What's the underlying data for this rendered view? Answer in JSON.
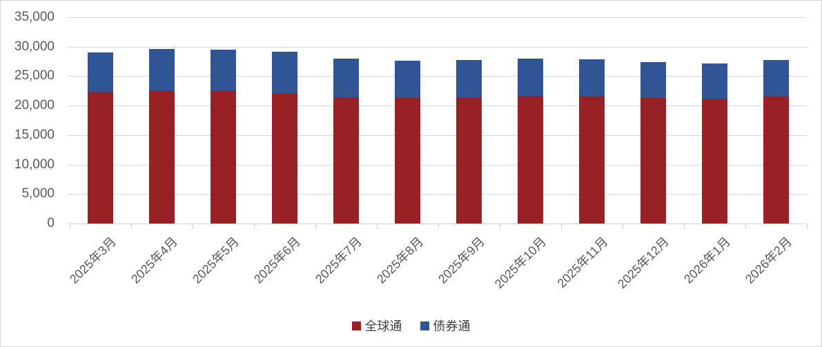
{
  "chart_data": {
    "type": "bar",
    "stacked": true,
    "title": "",
    "xlabel": "",
    "ylabel": "",
    "categories": [
      "2025年3月",
      "2025年4月",
      "2025年5月",
      "2025年6月",
      "2025年7月",
      "2025年8月",
      "2025年9月",
      "2025年10月",
      "2025年11月",
      "2025年12月",
      "2026年1月",
      "2026年2月"
    ],
    "series": [
      {
        "name": "全球通",
        "color": "#972125",
        "values": [
          22300,
          22550,
          22650,
          22100,
          21450,
          21300,
          21450,
          21600,
          21500,
          21250,
          21200,
          21500
        ]
      },
      {
        "name": "债券通",
        "color": "#2F5594",
        "values": [
          6750,
          7100,
          6850,
          7050,
          6550,
          6350,
          6350,
          6400,
          6400,
          6150,
          6000,
          6200
        ]
      }
    ],
    "stack_totals": [
      29050,
      29650,
      29500,
      29150,
      28000,
      27650,
      27800,
      28000,
      27900,
      27400,
      27200,
      27700
    ],
    "ylim": [
      0,
      35000
    ],
    "ytick_step": 5000,
    "ytick_labels": [
      "0",
      "5,000",
      "10,000",
      "15,000",
      "20,000",
      "25,000",
      "30,000",
      "35,000"
    ],
    "grid": true,
    "legend_position": "bottom"
  },
  "colors": {
    "grid": "#d9d9d9",
    "axis": "#cfcfcf",
    "axis_text": "#595959",
    "legend_text": "#404040",
    "background": "#ffffff",
    "frame_border": "#d2d2d2"
  }
}
